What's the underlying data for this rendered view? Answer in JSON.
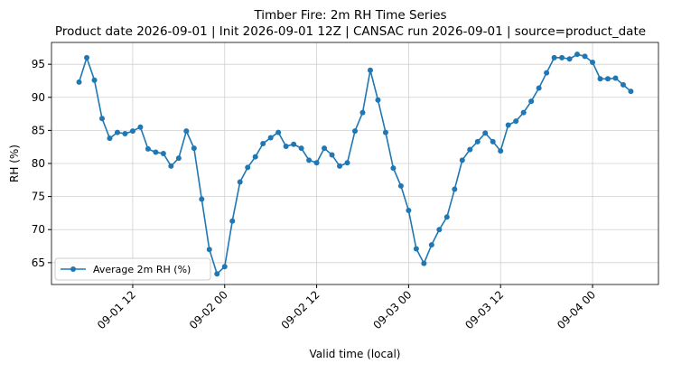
{
  "chart_data": {
    "type": "line",
    "title": "Timber Fire: 2m RH Time Series",
    "subtitle": "Product date 2026-09-01 | Init 2026-09-01 12Z | CANSAC run 2026-09-01 | source=product_date",
    "x_label": "Valid time (local)",
    "y_label": "RH (%)",
    "x": [
      "09-01 05",
      "09-01 06",
      "09-01 07",
      "09-01 08",
      "09-01 09",
      "09-01 10",
      "09-01 11",
      "09-01 12",
      "09-01 13",
      "09-01 14",
      "09-01 15",
      "09-01 16",
      "09-01 17",
      "09-01 18",
      "09-01 19",
      "09-01 20",
      "09-01 21",
      "09-01 22",
      "09-01 23",
      "09-02 00",
      "09-02 01",
      "09-02 02",
      "09-02 03",
      "09-02 04",
      "09-02 05",
      "09-02 06",
      "09-02 07",
      "09-02 08",
      "09-02 09",
      "09-02 10",
      "09-02 11",
      "09-02 12",
      "09-02 13",
      "09-02 14",
      "09-02 15",
      "09-02 16",
      "09-02 17",
      "09-02 18",
      "09-02 19",
      "09-02 20",
      "09-02 21",
      "09-02 22",
      "09-02 23",
      "09-03 00",
      "09-03 01",
      "09-03 02",
      "09-03 03",
      "09-03 04",
      "09-03 05",
      "09-03 06",
      "09-03 07",
      "09-03 08",
      "09-03 09",
      "09-03 10",
      "09-03 11",
      "09-03 12",
      "09-03 13",
      "09-03 14",
      "09-03 15",
      "09-03 16",
      "09-03 17",
      "09-03 18",
      "09-03 19",
      "09-03 20",
      "09-03 21",
      "09-03 22",
      "09-03 23",
      "09-04 00",
      "09-04 01",
      "09-04 02",
      "09-04 03",
      "09-04 04",
      "09-04 05"
    ],
    "series": [
      {
        "name": "Average 2m RH (%)",
        "color": "#1f77b4",
        "values": [
          92.3,
          96.0,
          92.6,
          86.8,
          83.8,
          84.7,
          84.5,
          84.9,
          85.5,
          82.2,
          81.7,
          81.5,
          79.6,
          80.8,
          84.9,
          82.3,
          74.6,
          67.0,
          63.3,
          64.4,
          71.3,
          77.2,
          79.4,
          81.0,
          83.0,
          83.9,
          84.7,
          82.6,
          82.9,
          82.3,
          80.5,
          80.1,
          82.3,
          81.3,
          79.6,
          80.1,
          84.9,
          87.7,
          94.1,
          89.6,
          84.7,
          79.3,
          76.6,
          72.9,
          67.1,
          64.9,
          67.7,
          70.0,
          71.9,
          76.1,
          80.5,
          82.1,
          83.3,
          84.6,
          83.3,
          81.9,
          85.8,
          86.4,
          87.7,
          89.4,
          91.4,
          93.7,
          96.0,
          96.0,
          95.8,
          96.5,
          96.2,
          95.3,
          92.8,
          92.8,
          92.9,
          91.9,
          90.9
        ]
      }
    ],
    "xlim": [
      "09-01 01:24",
      "09-04 08:36"
    ],
    "xticks": [
      "09-01 12",
      "09-02 00",
      "09-02 12",
      "09-03 00",
      "09-03 12",
      "09-04 00"
    ],
    "ylim": [
      61.7,
      98.3
    ],
    "yticks": [
      65,
      70,
      75,
      80,
      85,
      90,
      95
    ],
    "grid": true,
    "legend": "lower left"
  }
}
